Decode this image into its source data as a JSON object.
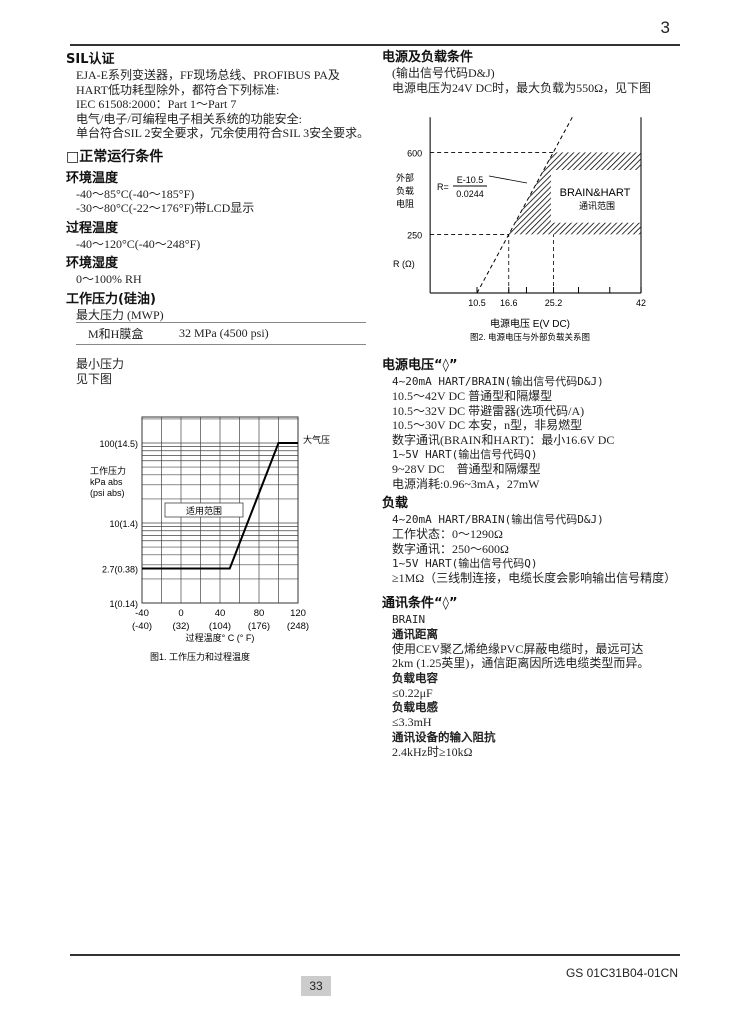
{
  "header": {
    "page_section": "3"
  },
  "left": {
    "sil": {
      "title": "SIL认证",
      "lines": [
        "EJA-E系列变送器，FF现场总线、PROFIBUS PA及",
        "HART低功耗型除外，都符合下列标准:",
        "IEC 61508:2000：Part 1～Part 7",
        "电气/电子/可编程电子相关系统的功能安全:",
        "单台符合SIL 2安全要求，冗余使用符合SIL 3安全要求。"
      ]
    },
    "section_title": "□正常运行条件",
    "ambient": {
      "title": "环境温度",
      "lines": [
        "-40～85°C(-40～185°F)",
        "-30～80°C(-22～176°F)带LCD显示"
      ]
    },
    "process": {
      "title": "过程温度",
      "lines": [
        "-40～120°C(-40～248°F)"
      ]
    },
    "humidity": {
      "title": "环境湿度",
      "lines": [
        "0～100% RH"
      ]
    },
    "pressure": {
      "title": "工作压力(硅油)",
      "mwp": "最大压力 (MWP)",
      "table": [
        [
          "M和H膜盒",
          "32 MPa (4500 psi)"
        ]
      ],
      "min_lines": [
        "最小压力",
        "见下图"
      ]
    }
  },
  "right": {
    "power_load": {
      "title": "电源及负载条件",
      "lines": [
        "(输出信号代码D&J)",
        "电源电压为24V DC时，最大负载为550Ω，见下图"
      ]
    },
    "supply": {
      "title": "电源电压“◊”",
      "items": [
        {
          "kind": "sub",
          "text": "4~20mA HART/BRAIN(输出信号代码D&J)"
        },
        {
          "kind": "t",
          "text": "10.5～42V DC 普通型和隔爆型"
        },
        {
          "kind": "t",
          "text": "10.5～32V DC 带避雷器(选项代码/A)"
        },
        {
          "kind": "t",
          "text": "10.5～30V DC 本安，n型，非易燃型"
        },
        {
          "kind": "t",
          "text": "数字通讯(BRAIN和HART)：最小16.6V DC"
        },
        {
          "kind": "sub",
          "text": "1~5V HART(输出信号代码Q)"
        },
        {
          "kind": "t",
          "text": "9~28V DC　普通型和隔爆型"
        },
        {
          "kind": "t",
          "text": "电源消耗:0.96~3mA，27mW"
        }
      ]
    },
    "load": {
      "title": "负载",
      "items": [
        {
          "kind": "sub",
          "text": "4~20mA HART/BRAIN(输出信号代码D&J)"
        },
        {
          "kind": "t",
          "text": "工作状态：0～1290Ω"
        },
        {
          "kind": "t",
          "text": "数字通讯：250～600Ω"
        },
        {
          "kind": "sub",
          "text": "1~5V HART(输出信号代码Q)"
        },
        {
          "kind": "t",
          "text": "≥1MΩ（三线制连接，电缆长度会影响输出信号精度）"
        }
      ]
    },
    "comm": {
      "title": "通讯条件“◊”",
      "items": [
        {
          "kind": "sub",
          "text": "BRAIN"
        },
        {
          "kind": "sh",
          "text": "通讯距离"
        },
        {
          "kind": "t",
          "text": "使用CEV聚乙烯绝缘PVC屏蔽电缆时，最远可达"
        },
        {
          "kind": "t",
          "text": "2km (1.25英里)，通信距离因所选电缆类型而异。"
        },
        {
          "kind": "sh",
          "text": "负载电容"
        },
        {
          "kind": "t",
          "text": "≤0.22μF"
        },
        {
          "kind": "sh",
          "text": "负载电感"
        },
        {
          "kind": "t",
          "text": "≤3.3mH"
        },
        {
          "kind": "sh",
          "text": "通讯设备的输入阻抗"
        },
        {
          "kind": "t",
          "text": "2.4kHz时≥10kΩ"
        }
      ]
    }
  },
  "footer": {
    "page_number": "33",
    "doc_id": "GS 01C31B04-01CN"
  },
  "chart_data": [
    {
      "type": "line",
      "title": "图1. 工作压力和过程温度",
      "xlabel": "过程温度° C (° F)",
      "ylabel_lines": [
        "工作压力",
        "kPa abs",
        "(psi abs)"
      ],
      "x_ticks": [
        {
          "v": -40,
          "label": "-40",
          "sub": "(-40)"
        },
        {
          "v": 0,
          "label": "0",
          "sub": "(32)"
        },
        {
          "v": 40,
          "label": "40",
          "sub": "(104)"
        },
        {
          "v": 80,
          "label": "80",
          "sub": "(176)"
        },
        {
          "v": 120,
          "label": "120",
          "sub": "(248)"
        }
      ],
      "y_ticks": [
        {
          "v": 1,
          "label": "1(0.14)"
        },
        {
          "v": 2.7,
          "label": "2.7(0.38)"
        },
        {
          "v": 10,
          "label": "10(1.4)"
        },
        {
          "v": 100,
          "label": "100(14.5)"
        }
      ],
      "y_scale": "log",
      "xlim": [
        -40,
        120
      ],
      "ylim": [
        1,
        215
      ],
      "grid": true,
      "points": [
        [
          -40,
          2.7
        ],
        [
          50,
          2.7
        ],
        [
          100,
          100
        ],
        [
          120,
          100
        ]
      ],
      "annotations": {
        "atmospheric": "大气压",
        "region": "适用范围"
      }
    },
    {
      "type": "line",
      "title": "图2. 电源电压与外部负载关系图",
      "xlabel": "电源电压  E(V DC)",
      "ylabel_lines": [
        "外部",
        "负载",
        "电阻"
      ],
      "yunit": "R (Ω)",
      "x_ticks": [
        10.5,
        16.6,
        25.2,
        42
      ],
      "y_ticks": [
        250,
        600
      ],
      "xlim": [
        1.5,
        42
      ],
      "ylim": [
        0,
        750
      ],
      "formula": {
        "lhs": "R=",
        "num": "E-10.5",
        "den": "0.0244"
      },
      "line": {
        "intercept_v": 10.5,
        "slope_v_per_ohm": 0.0244
      },
      "region": {
        "label": "BRAIN&HART",
        "sublabel": "通讯范围",
        "r_range": [
          250,
          600
        ],
        "v_max": 42,
        "inner_clear": {
          "v_min": 24.7,
          "r_range": [
            300,
            525
          ]
        }
      }
    }
  ]
}
